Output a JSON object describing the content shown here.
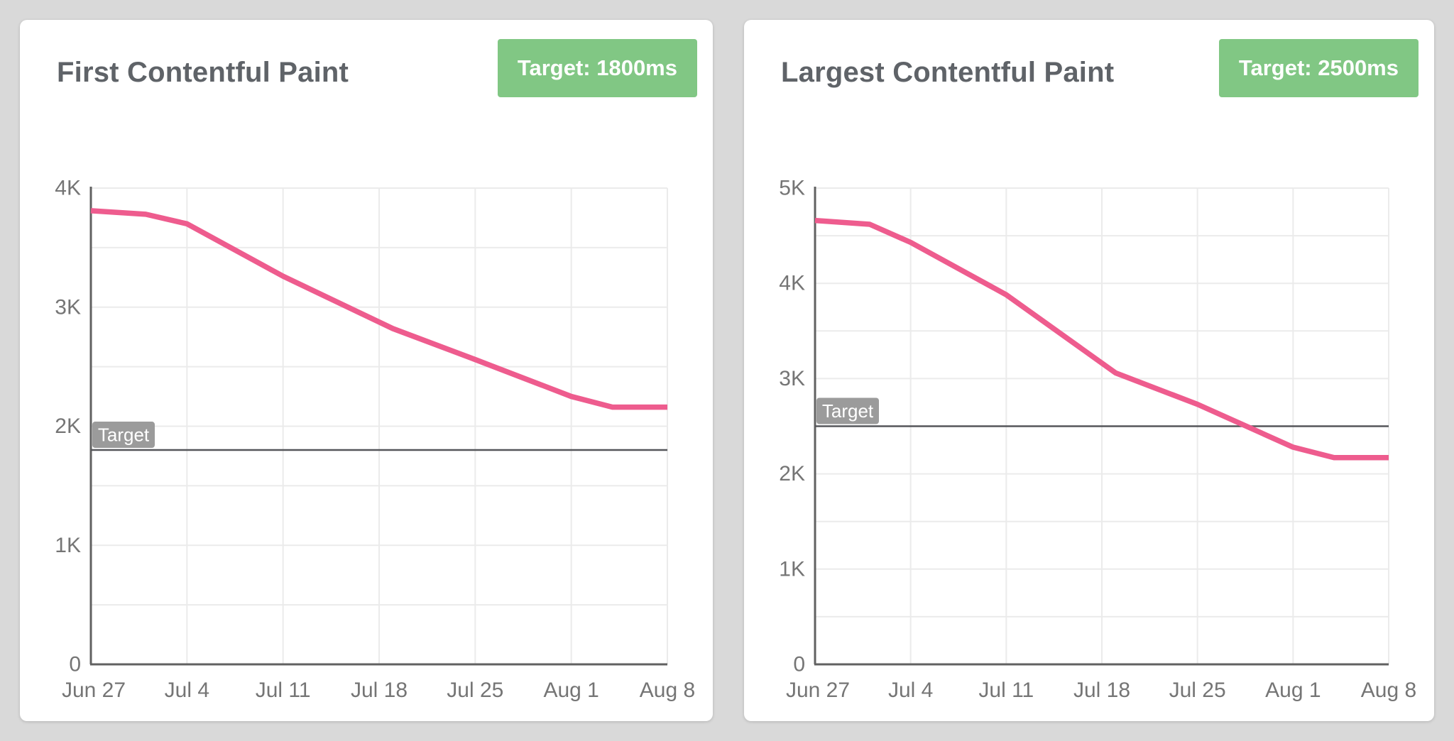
{
  "page": {
    "background_color": "#d9d9d9",
    "card_color": "#ffffff"
  },
  "colors": {
    "line_pink": "#ee5c8e",
    "badge_green": "#81c784",
    "badge_gray": "#9b9b9b",
    "title_gray": "#5f6368",
    "tick_gray": "#757575",
    "axis_gray": "#616161",
    "gridline_gray": "#ebebeb",
    "target_line_gray": "#55565a",
    "badge_text": "#ffffff"
  },
  "cards": [
    {
      "title": "First Contentful Paint",
      "target_badge_label": "Target: 1800ms"
    },
    {
      "title": "Largest Contentful Paint",
      "target_badge_label": "Target: 2500ms"
    }
  ],
  "chart_data": [
    {
      "type": "line",
      "title": "First Contentful Paint",
      "series": [
        {
          "name": "First Contentful Paint (ms)",
          "x_days": [
            0,
            4,
            7,
            14,
            22,
            28,
            35,
            38,
            42
          ],
          "values": [
            3810,
            3780,
            3700,
            3260,
            2820,
            2560,
            2250,
            2160,
            2160
          ]
        }
      ],
      "x_tick_days": [
        0,
        7,
        14,
        21,
        28,
        35,
        42
      ],
      "x_tick_labels": [
        "Jun 27",
        "Jul 4",
        "Jul 11",
        "Jul 18",
        "Jul 25",
        "Aug 1",
        "Aug 8"
      ],
      "y_tick_labels": [
        "0",
        "1K",
        "2K",
        "3K",
        "4K"
      ],
      "ylim": [
        0,
        4000
      ],
      "grid_step": 500,
      "grid": "on",
      "legend": "none",
      "target": {
        "value": 1800,
        "label": "Target",
        "badge": "Target: 1800ms"
      }
    },
    {
      "type": "line",
      "title": "Largest Contentful Paint",
      "series": [
        {
          "name": "Largest Contentful Paint (ms)",
          "x_days": [
            0,
            4,
            7,
            14,
            22,
            28,
            35,
            38,
            42
          ],
          "values": [
            4660,
            4620,
            4430,
            3880,
            3060,
            2730,
            2280,
            2170,
            2170
          ]
        }
      ],
      "x_tick_days": [
        0,
        7,
        14,
        21,
        28,
        35,
        42
      ],
      "x_tick_labels": [
        "Jun 27",
        "Jul 4",
        "Jul 11",
        "Jul 18",
        "Jul 25",
        "Aug 1",
        "Aug 8"
      ],
      "y_tick_labels": [
        "0",
        "1K",
        "2K",
        "3K",
        "4K",
        "5K"
      ],
      "ylim": [
        0,
        5000
      ],
      "grid_step": 500,
      "grid": "on",
      "legend": "none",
      "target": {
        "value": 2500,
        "label": "Target",
        "badge": "Target: 2500ms"
      }
    }
  ]
}
